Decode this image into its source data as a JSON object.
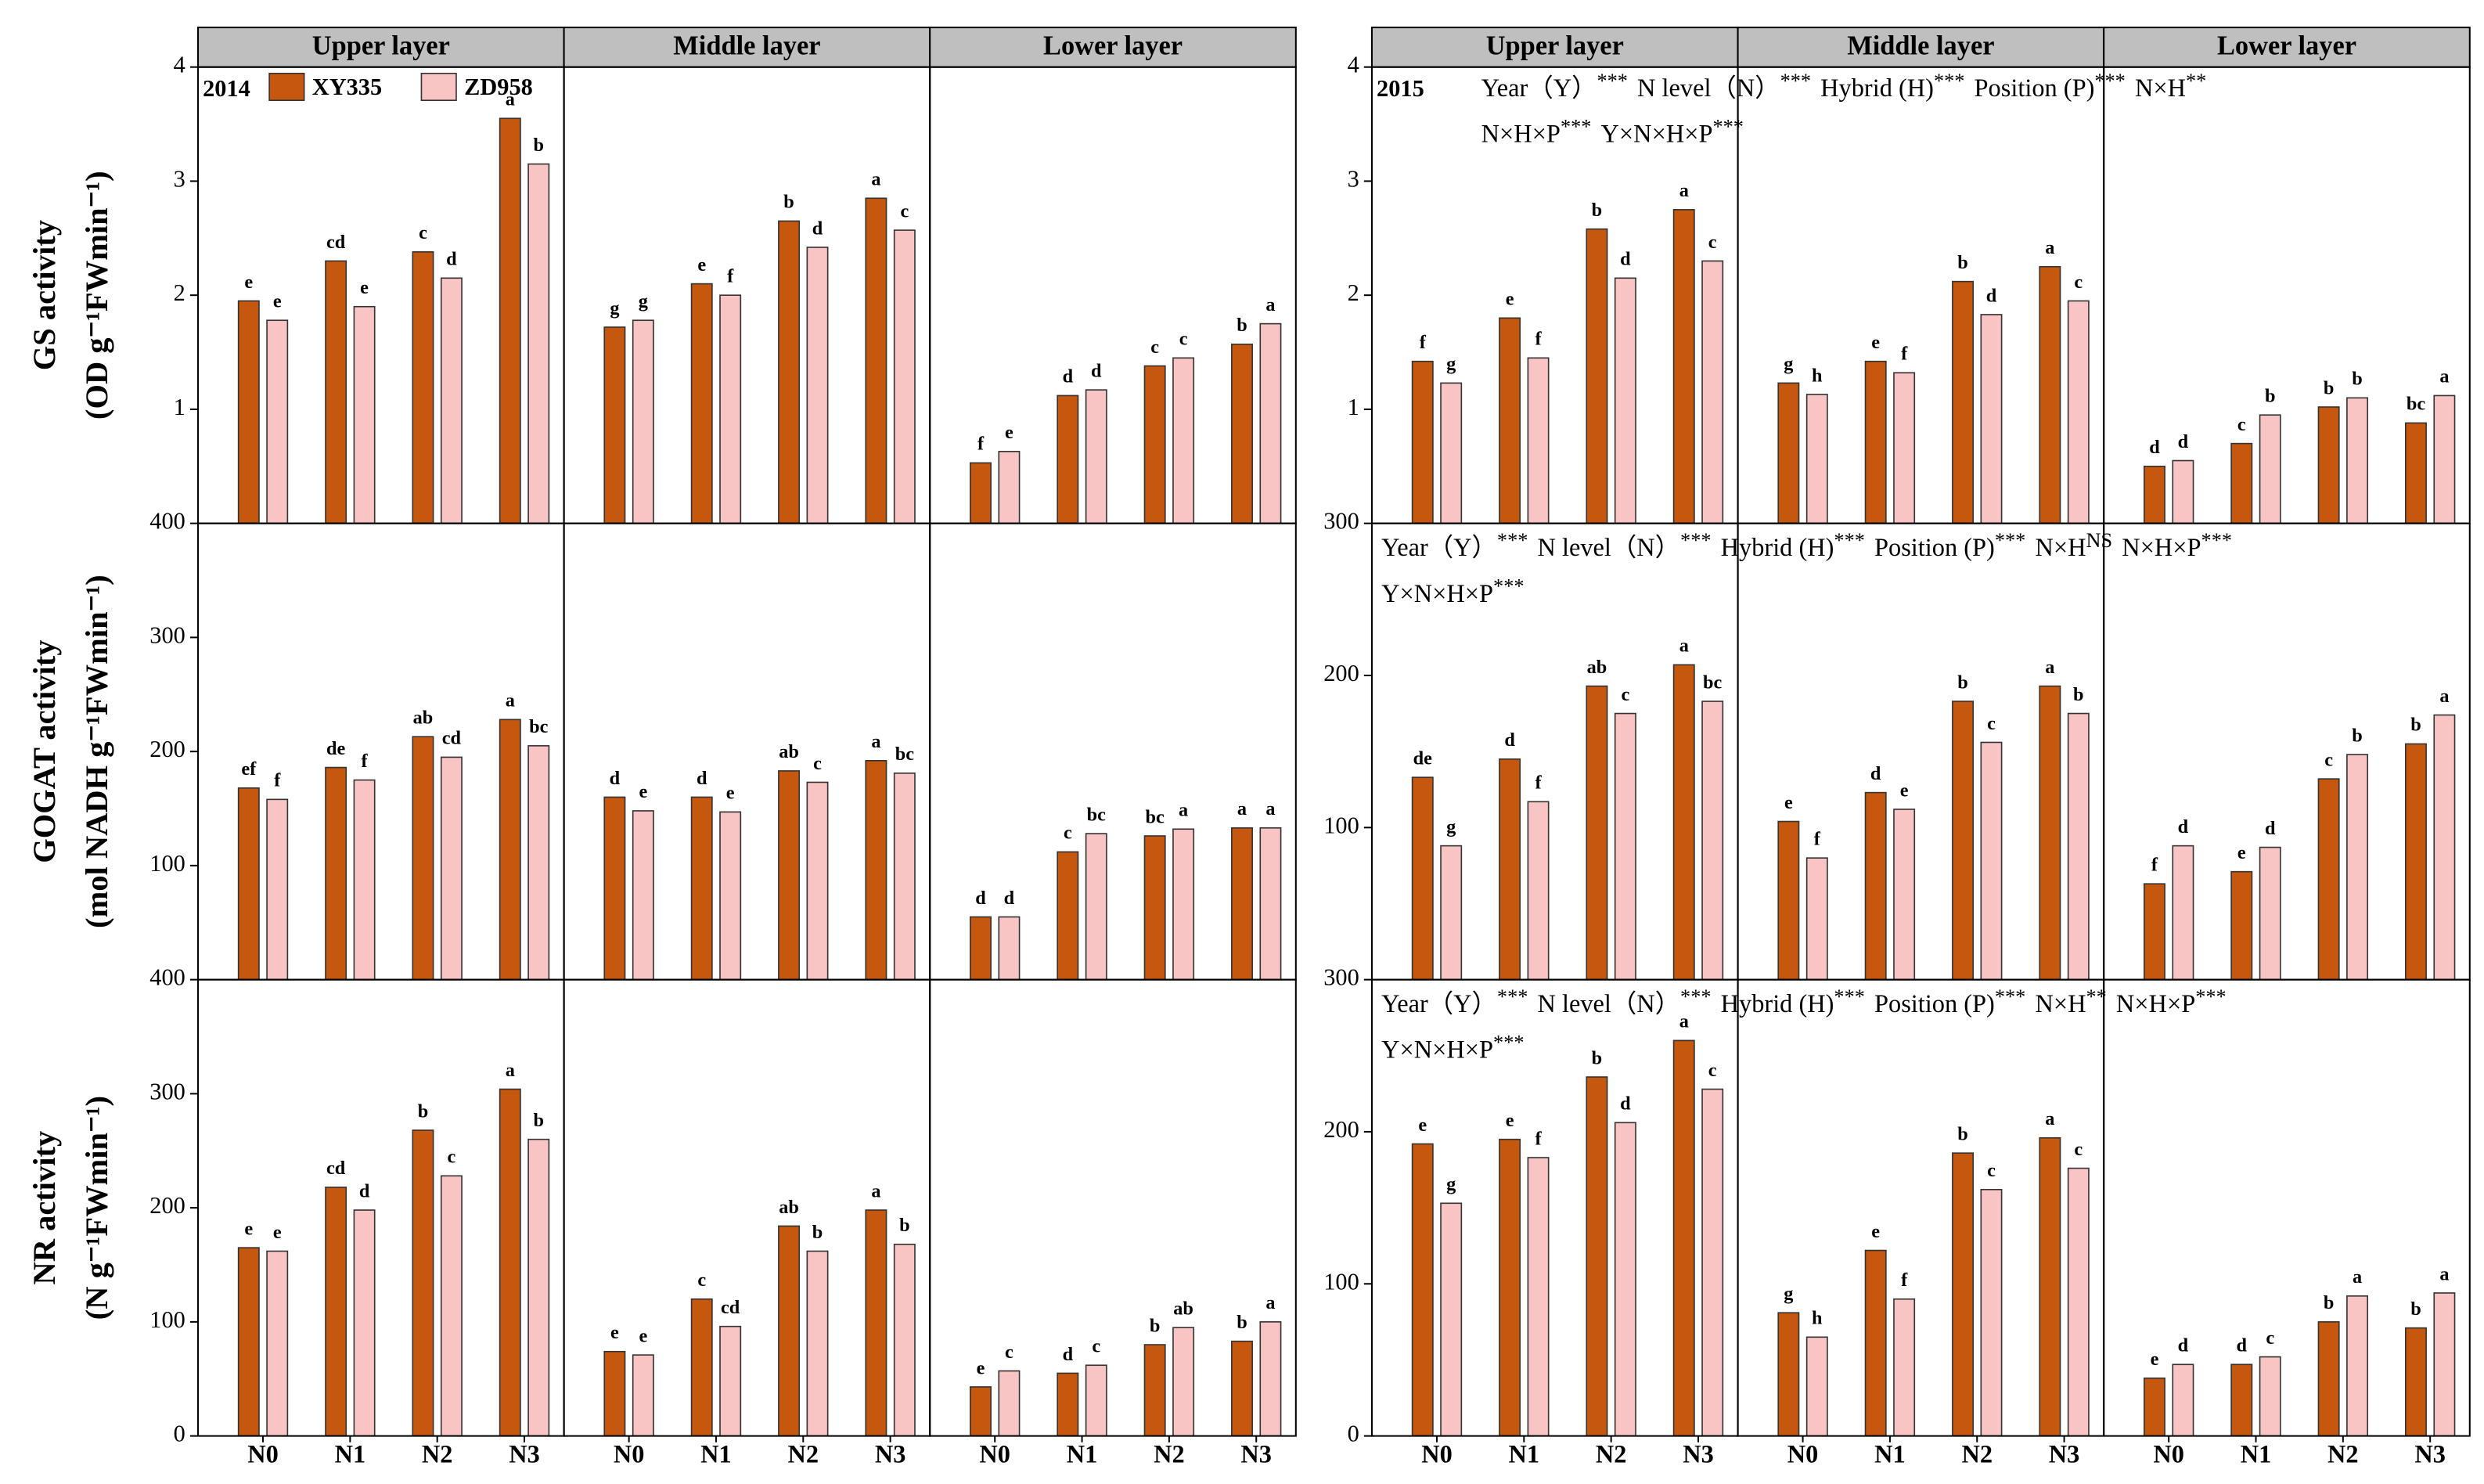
{
  "chart_data": {
    "type": "bar",
    "hybrids": [
      {
        "name": "XY335",
        "color": "#c5570f"
      },
      {
        "name": "ZD958",
        "color": "#f8c4c4"
      }
    ],
    "ylabels": [
      [
        "GS activity",
        "(OD g⁻¹FWmin⁻¹)"
      ],
      [
        "GOGAT activity",
        "(mol NADH g⁻¹FWmin⁻¹)"
      ],
      [
        "NR activity",
        "(N g⁻¹FWmin⁻¹)"
      ]
    ],
    "years": [
      {
        "label": "2014",
        "legend": true,
        "layer_titles": [
          "Upper layer",
          "Middle layer",
          "Lower layer"
        ],
        "categories": [
          "N0",
          "N1",
          "N2",
          "N3"
        ],
        "rows": [
          {
            "ylim": [
              0,
              4
            ],
            "yticks": [
              1,
              2,
              3,
              4
            ],
            "panels": [
              {
                "series": [
                  {
                    "values": [
                      1.95,
                      2.3,
                      2.38,
                      3.55
                    ],
                    "letters": [
                      "e",
                      "cd",
                      "c",
                      "a"
                    ]
                  },
                  {
                    "values": [
                      1.78,
                      1.9,
                      2.15,
                      3.15
                    ],
                    "letters": [
                      "e",
                      "e",
                      "d",
                      "b"
                    ]
                  }
                ]
              },
              {
                "series": [
                  {
                    "values": [
                      1.72,
                      2.1,
                      2.65,
                      2.85
                    ],
                    "letters": [
                      "g",
                      "e",
                      "b",
                      "a"
                    ]
                  },
                  {
                    "values": [
                      1.78,
                      2.0,
                      2.42,
                      2.57
                    ],
                    "letters": [
                      "g",
                      "f",
                      "d",
                      "c"
                    ]
                  }
                ]
              },
              {
                "series": [
                  {
                    "values": [
                      0.53,
                      1.12,
                      1.38,
                      1.57
                    ],
                    "letters": [
                      "f",
                      "d",
                      "c",
                      "b"
                    ]
                  },
                  {
                    "values": [
                      0.63,
                      1.17,
                      1.45,
                      1.75
                    ],
                    "letters": [
                      "e",
                      "d",
                      "c",
                      "a"
                    ]
                  }
                ]
              }
            ]
          },
          {
            "ylim": [
              0,
              400
            ],
            "yticks": [
              100,
              200,
              300,
              400
            ],
            "panels": [
              {
                "series": [
                  {
                    "values": [
                      168,
                      186,
                      213,
                      228
                    ],
                    "letters": [
                      "ef",
                      "de",
                      "ab",
                      "a"
                    ]
                  },
                  {
                    "values": [
                      158,
                      175,
                      195,
                      205
                    ],
                    "letters": [
                      "f",
                      "f",
                      "cd",
                      "bc"
                    ]
                  }
                ]
              },
              {
                "series": [
                  {
                    "values": [
                      160,
                      160,
                      183,
                      192
                    ],
                    "letters": [
                      "d",
                      "d",
                      "ab",
                      "a"
                    ]
                  },
                  {
                    "values": [
                      148,
                      147,
                      173,
                      181
                    ],
                    "letters": [
                      "e",
                      "e",
                      "c",
                      "bc"
                    ]
                  }
                ]
              },
              {
                "series": [
                  {
                    "values": [
                      55,
                      112,
                      126,
                      133
                    ],
                    "letters": [
                      "d",
                      "c",
                      "bc",
                      "a"
                    ]
                  },
                  {
                    "values": [
                      55,
                      128,
                      132,
                      133
                    ],
                    "letters": [
                      "d",
                      "bc",
                      "a",
                      "a"
                    ]
                  }
                ]
              }
            ]
          },
          {
            "ylim": [
              0,
              400
            ],
            "yticks": [
              0,
              100,
              200,
              300,
              400
            ],
            "panels": [
              {
                "series": [
                  {
                    "values": [
                      165,
                      218,
                      268,
                      304
                    ],
                    "letters": [
                      "e",
                      "cd",
                      "b",
                      "a"
                    ]
                  },
                  {
                    "values": [
                      162,
                      198,
                      228,
                      260
                    ],
                    "letters": [
                      "e",
                      "d",
                      "c",
                      "b"
                    ]
                  }
                ]
              },
              {
                "series": [
                  {
                    "values": [
                      74,
                      120,
                      184,
                      198
                    ],
                    "letters": [
                      "e",
                      "c",
                      "ab",
                      "a"
                    ]
                  },
                  {
                    "values": [
                      71,
                      96,
                      162,
                      168
                    ],
                    "letters": [
                      "e",
                      "cd",
                      "b",
                      "b"
                    ]
                  }
                ]
              },
              {
                "series": [
                  {
                    "values": [
                      43,
                      55,
                      80,
                      83
                    ],
                    "letters": [
                      "e",
                      "d",
                      "b",
                      "b"
                    ]
                  },
                  {
                    "values": [
                      57,
                      62,
                      95,
                      100
                    ],
                    "letters": [
                      "c",
                      "c",
                      "ab",
                      "a"
                    ]
                  }
                ]
              }
            ]
          }
        ]
      },
      {
        "label": "2015",
        "layer_titles": [
          "Upper layer",
          "Middle layer",
          "Lower layer"
        ],
        "categories": [
          "N0",
          "N1",
          "N2",
          "N3"
        ],
        "rows": [
          {
            "ylim": [
              0,
              4
            ],
            "yticks": [
              1,
              2,
              3,
              4
            ],
            "stats": [
              [
                {
                  "term": "Year（Y）",
                  "sig": "***"
                },
                {
                  "term": "N level（N）",
                  "sig": "***"
                },
                {
                  "term": "Hybrid (H)",
                  "sig": "***"
                },
                {
                  "term": "Position (P)",
                  "sig": "***"
                },
                {
                  "term": "N×H",
                  "sig": "**"
                }
              ],
              [
                {
                  "term": "N×H×P",
                  "sig": "***"
                },
                {
                  "term": "Y×N×H×P",
                  "sig": "***"
                }
              ]
            ],
            "panels": [
              {
                "series": [
                  {
                    "values": [
                      1.42,
                      1.8,
                      2.58,
                      2.75
                    ],
                    "letters": [
                      "f",
                      "e",
                      "b",
                      "a"
                    ]
                  },
                  {
                    "values": [
                      1.23,
                      1.45,
                      2.15,
                      2.3
                    ],
                    "letters": [
                      "g",
                      "f",
                      "d",
                      "c"
                    ]
                  }
                ]
              },
              {
                "series": [
                  {
                    "values": [
                      1.23,
                      1.42,
                      2.12,
                      2.25
                    ],
                    "letters": [
                      "g",
                      "e",
                      "b",
                      "a"
                    ]
                  },
                  {
                    "values": [
                      1.13,
                      1.32,
                      1.83,
                      1.95
                    ],
                    "letters": [
                      "h",
                      "f",
                      "d",
                      "c"
                    ]
                  }
                ]
              },
              {
                "series": [
                  {
                    "values": [
                      0.5,
                      0.7,
                      1.02,
                      0.88
                    ],
                    "letters": [
                      "d",
                      "c",
                      "b",
                      "bc"
                    ]
                  },
                  {
                    "values": [
                      0.55,
                      0.95,
                      1.1,
                      1.12
                    ],
                    "letters": [
                      "d",
                      "b",
                      "b",
                      "a"
                    ]
                  }
                ]
              }
            ]
          },
          {
            "ylim": [
              0,
              300
            ],
            "yticks": [
              100,
              200,
              300
            ],
            "stats": [
              [
                {
                  "term": "Year（Y）",
                  "sig": "***"
                },
                {
                  "term": "N level（N）",
                  "sig": "***"
                },
                {
                  "term": "Hybrid (H)",
                  "sig": "***"
                },
                {
                  "term": "Position (P)",
                  "sig": "***"
                },
                {
                  "term": "N×H",
                  "sig": "NS"
                },
                {
                  "term": "N×H×P",
                  "sig": "***"
                }
              ],
              [
                {
                  "term": "Y×N×H×P",
                  "sig": "***"
                }
              ]
            ],
            "panels": [
              {
                "series": [
                  {
                    "values": [
                      133,
                      145,
                      193,
                      207
                    ],
                    "letters": [
                      "de",
                      "d",
                      "ab",
                      "a"
                    ]
                  },
                  {
                    "values": [
                      88,
                      117,
                      175,
                      183
                    ],
                    "letters": [
                      "g",
                      "f",
                      "c",
                      "bc"
                    ]
                  }
                ]
              },
              {
                "series": [
                  {
                    "values": [
                      104,
                      123,
                      183,
                      193
                    ],
                    "letters": [
                      "e",
                      "d",
                      "b",
                      "a"
                    ]
                  },
                  {
                    "values": [
                      80,
                      112,
                      156,
                      175
                    ],
                    "letters": [
                      "f",
                      "e",
                      "c",
                      "b"
                    ]
                  }
                ]
              },
              {
                "series": [
                  {
                    "values": [
                      63,
                      71,
                      132,
                      155
                    ],
                    "letters": [
                      "f",
                      "e",
                      "c",
                      "b"
                    ]
                  },
                  {
                    "values": [
                      88,
                      87,
                      148,
                      174
                    ],
                    "letters": [
                      "d",
                      "d",
                      "b",
                      "a"
                    ]
                  }
                ]
              }
            ]
          },
          {
            "ylim": [
              0,
              300
            ],
            "yticks": [
              0,
              100,
              200,
              300
            ],
            "stats": [
              [
                {
                  "term": "Year（Y）",
                  "sig": "***"
                },
                {
                  "term": "N level（N）",
                  "sig": "***"
                },
                {
                  "term": "Hybrid (H)",
                  "sig": "***"
                },
                {
                  "term": "Position (P)",
                  "sig": "***"
                },
                {
                  "term": "N×H",
                  "sig": "**"
                },
                {
                  "term": "N×H×P",
                  "sig": "***"
                }
              ],
              [
                {
                  "term": "Y×N×H×P",
                  "sig": "***"
                }
              ]
            ],
            "panels": [
              {
                "series": [
                  {
                    "values": [
                      192,
                      195,
                      236,
                      260
                    ],
                    "letters": [
                      "e",
                      "e",
                      "b",
                      "a"
                    ]
                  },
                  {
                    "values": [
                      153,
                      183,
                      206,
                      228
                    ],
                    "letters": [
                      "g",
                      "f",
                      "d",
                      "c"
                    ]
                  }
                ]
              },
              {
                "series": [
                  {
                    "values": [
                      81,
                      122,
                      186,
                      196
                    ],
                    "letters": [
                      "g",
                      "e",
                      "b",
                      "a"
                    ]
                  },
                  {
                    "values": [
                      65,
                      90,
                      162,
                      176
                    ],
                    "letters": [
                      "h",
                      "f",
                      "c",
                      "c"
                    ]
                  }
                ]
              },
              {
                "series": [
                  {
                    "values": [
                      38,
                      47,
                      75,
                      71
                    ],
                    "letters": [
                      "e",
                      "d",
                      "b",
                      "b"
                    ]
                  },
                  {
                    "values": [
                      47,
                      52,
                      92,
                      94
                    ],
                    "letters": [
                      "d",
                      "c",
                      "a",
                      "a"
                    ]
                  }
                ]
              }
            ]
          }
        ]
      }
    ]
  }
}
